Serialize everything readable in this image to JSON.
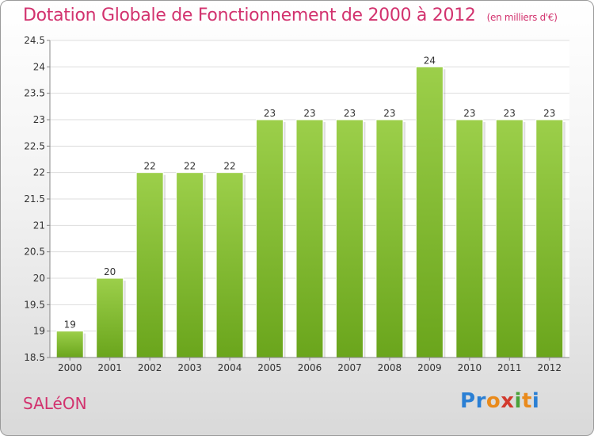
{
  "title": "Dotation Globale de Fonctionnement de 2000 à 2012",
  "unit_note": "(en milliers d'€)",
  "commune": "SALéON",
  "logo": [
    "P",
    "r",
    "o",
    "x",
    "i",
    "t",
    "i"
  ],
  "colors": {
    "title": "#d2326e",
    "bar_light": "#9ccf4a",
    "bar_dark": "#6aa51c"
  },
  "chart_data": {
    "type": "bar",
    "categories": [
      "2000",
      "2001",
      "2002",
      "2003",
      "2004",
      "2005",
      "2006",
      "2007",
      "2008",
      "2009",
      "2010",
      "2011",
      "2012"
    ],
    "values": [
      19,
      20,
      22,
      22,
      22,
      23,
      23,
      23,
      23,
      24,
      23,
      23,
      23
    ],
    "data_labels": [
      "19",
      "20",
      "22",
      "22",
      "22",
      "23",
      "23",
      "23",
      "23",
      "24",
      "23",
      "23",
      "23"
    ],
    "ylim": [
      18.5,
      24.5
    ],
    "yticks": [
      "18.5",
      "19",
      "19.5",
      "20",
      "20.5",
      "21",
      "21.5",
      "22",
      "22.5",
      "23",
      "23.5",
      "24",
      "24.5"
    ],
    "grid": true,
    "xlabel": "",
    "ylabel": ""
  }
}
